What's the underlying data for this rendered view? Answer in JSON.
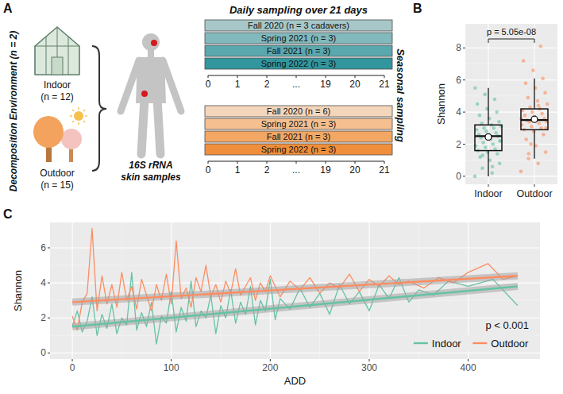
{
  "diagram": {
    "panel_label": "A",
    "environment_title": "Decomposition Environment (n = 2)",
    "environments": [
      {
        "name": "Indoor",
        "n_label": "(n = 12)"
      },
      {
        "name": "Outdoor",
        "n_label": "(n = 15)"
      }
    ],
    "sample_label": "16S rRNA skin samples",
    "sampling_title": "Daily sampling over 21 days",
    "seasonal_label": "Seasonal sampling",
    "timelines": [
      {
        "seasons": [
          {
            "label": "Fall 2020 (n = 3 cadavers)",
            "color": "#a7c7c8"
          },
          {
            "label": "Spring 2021 (n = 3)",
            "color": "#82b9bc"
          },
          {
            "label": "Fall 2021 (n = 3)",
            "color": "#5aa8ad"
          },
          {
            "label": "Spring 2022 (n = 3)",
            "color": "#31969d"
          }
        ],
        "axis_ticks": [
          "0",
          "1",
          "2",
          "...",
          "19",
          "20",
          "21"
        ]
      },
      {
        "seasons": [
          {
            "label": "Fall 2020 (n = 6)",
            "color": "#f4d6bb"
          },
          {
            "label": "Spring 2021 (n = 3)",
            "color": "#f5bf8f"
          },
          {
            "label": "Fall 2021 (n = 3)",
            "color": "#f3a764"
          },
          {
            "label": "Spring 2022 (n = 3)",
            "color": "#f08f3b"
          }
        ],
        "axis_ticks": [
          "0",
          "1",
          "2",
          "...",
          "19",
          "20",
          "21"
        ]
      }
    ]
  },
  "chart_data": [
    {
      "type": "box",
      "panel_label": "B",
      "y_label": "Shannon",
      "categories": [
        "Indoor",
        "Outdoor"
      ],
      "colors": [
        "#66c2a5",
        "#fc8d62"
      ],
      "ylim": [
        -0.5,
        9.5
      ],
      "yticks": [
        0,
        2,
        4,
        6,
        8
      ],
      "grid": true,
      "annotations": [
        "p = 5.05e-08"
      ],
      "boxes": [
        {
          "whisker_low": 0,
          "q1": 1.6,
          "median": 2.5,
          "q3": 3.2,
          "whisker_high": 5.5,
          "mean": 2.45,
          "points": [
            0.0,
            0.2,
            0.5,
            0.8,
            1.0,
            1.2,
            1.4,
            1.5,
            1.6,
            1.7,
            1.8,
            1.9,
            2.0,
            2.1,
            2.2,
            2.3,
            2.4,
            2.5,
            2.5,
            2.6,
            2.7,
            2.8,
            2.9,
            3.0,
            3.0,
            3.1,
            3.2,
            3.3,
            3.4,
            3.6,
            3.8,
            4.0,
            4.2,
            4.5,
            4.8,
            5.1,
            5.5,
            0.6,
            1.3,
            2.2
          ]
        },
        {
          "whisker_low": 1.1,
          "q1": 2.9,
          "median": 3.5,
          "q3": 4.2,
          "whisker_high": 6.1,
          "mean": 3.55,
          "points": [
            0.3,
            0.8,
            1.1,
            1.5,
            1.9,
            2.3,
            2.6,
            2.8,
            2.9,
            3.0,
            3.1,
            3.2,
            3.3,
            3.4,
            3.4,
            3.5,
            3.5,
            3.6,
            3.7,
            3.8,
            3.9,
            4.0,
            4.1,
            4.2,
            4.3,
            4.5,
            4.7,
            4.9,
            5.2,
            5.5,
            5.8,
            6.1,
            6.6,
            7.2,
            8.1,
            2.0,
            3.6,
            4.4,
            1.4,
            3.0
          ]
        }
      ]
    },
    {
      "type": "line",
      "panel_label": "C",
      "x_label": "ADD",
      "y_label": "Shannon",
      "xlim": [
        -22.5,
        472.5
      ],
      "ylim": [
        -0.35,
        7.45
      ],
      "xticks": [
        0,
        100,
        200,
        300,
        400
      ],
      "yticks": [
        0,
        2,
        4,
        6
      ],
      "grid": true,
      "legend": "bottom-right",
      "annotations": [
        "p < 0.001"
      ],
      "series": [
        {
          "name": "Indoor",
          "color": "#66c2a5",
          "x": [
            0,
            5,
            10,
            15,
            20,
            25,
            30,
            35,
            40,
            45,
            50,
            55,
            60,
            65,
            70,
            75,
            80,
            85,
            90,
            95,
            100,
            105,
            110,
            115,
            120,
            125,
            130,
            135,
            140,
            145,
            150,
            155,
            160,
            165,
            170,
            175,
            180,
            185,
            190,
            195,
            200,
            205,
            210,
            220,
            230,
            240,
            250,
            260,
            270,
            280,
            290,
            300,
            310,
            320,
            330,
            340,
            350,
            365,
            380,
            400,
            425,
            450
          ],
          "values": [
            1.5,
            2.4,
            1.2,
            1.8,
            3.2,
            1.0,
            2.2,
            1.4,
            2.8,
            1.1,
            2.0,
            1.6,
            4.6,
            1.3,
            2.3,
            1.5,
            2.9,
            0.5,
            2.1,
            1.7,
            3.5,
            1.2,
            2.6,
            1.8,
            4.1,
            1.5,
            2.4,
            2.0,
            3.3,
            1.1,
            2.7,
            2.0,
            3.6,
            1.7,
            2.9,
            2.2,
            3.8,
            1.6,
            3.0,
            2.4,
            4.2,
            1.9,
            3.1,
            2.5,
            3.7,
            2.6,
            3.4,
            2.2,
            3.9,
            2.8,
            3.5,
            2.4,
            3.9,
            3.1,
            4.3,
            2.9,
            3.6,
            3.3,
            4.1,
            3.8,
            4.2,
            2.7
          ],
          "trend": {
            "x": [
              0,
              450
            ],
            "values": [
              1.5,
              3.8
            ]
          }
        },
        {
          "name": "Outdoor",
          "color": "#fc8d62",
          "x": [
            0,
            5,
            10,
            15,
            20,
            25,
            30,
            35,
            40,
            45,
            50,
            55,
            60,
            65,
            70,
            75,
            80,
            85,
            90,
            95,
            100,
            105,
            110,
            115,
            120,
            125,
            130,
            135,
            140,
            145,
            150,
            155,
            160,
            165,
            170,
            175,
            180,
            185,
            190,
            195,
            200,
            210,
            220,
            230,
            240,
            250,
            260,
            270,
            280,
            290,
            300,
            310,
            320,
            330,
            340,
            355,
            370,
            385,
            400,
            420,
            435,
            450
          ],
          "values": [
            2.1,
            1.3,
            2.9,
            3.4,
            7.1,
            2.4,
            4.4,
            2.8,
            3.9,
            2.6,
            4.6,
            3.0,
            3.8,
            2.5,
            4.2,
            3.3,
            2.4,
            3.9,
            3.0,
            4.5,
            2.8,
            6.4,
            3.1,
            3.7,
            2.6,
            4.3,
            3.5,
            5.0,
            3.2,
            3.9,
            2.9,
            4.1,
            3.4,
            4.8,
            3.3,
            3.8,
            4.3,
            3.0,
            4.0,
            3.5,
            4.4,
            3.2,
            4.1,
            3.6,
            4.3,
            3.4,
            4.0,
            3.7,
            4.5,
            3.5,
            4.2,
            3.8,
            4.4,
            3.9,
            4.1,
            3.7,
            4.3,
            4.0,
            4.6,
            5.1,
            4.2,
            4.4
          ],
          "trend": {
            "x": [
              0,
              450
            ],
            "values": [
              2.9,
              4.4
            ]
          }
        }
      ]
    }
  ]
}
